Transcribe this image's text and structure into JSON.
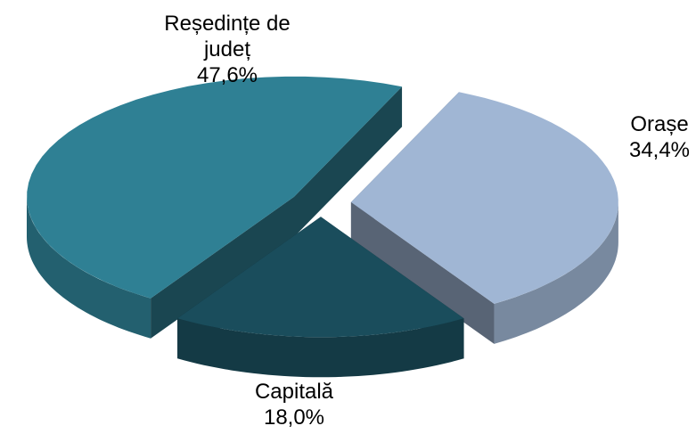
{
  "chart_data": {
    "type": "pie3d",
    "categories": [
      "Reședințe de județ",
      "Orașe",
      "Capitală"
    ],
    "values": [
      47.6,
      34.4,
      18.0
    ],
    "value_labels": [
      "47,6%",
      "34,4%",
      "18,0%"
    ],
    "colors": [
      "#2f8094",
      "#a0b6d4",
      "#1a4d5c"
    ]
  }
}
